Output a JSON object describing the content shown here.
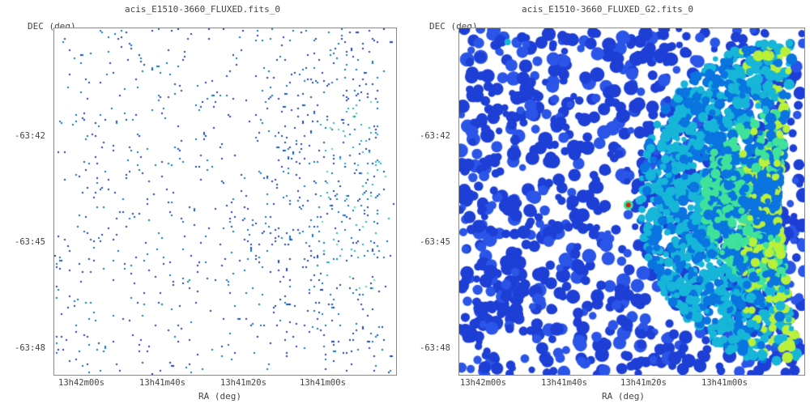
{
  "panels": [
    {
      "title": "acis_E1510-3660_FLUXED.fits_0",
      "xlabel": "RA (deg)",
      "ylabel": "DEC (deg)",
      "yticks": [
        "-63:42",
        "-63:45",
        "-63:48"
      ],
      "xticks": [
        "13h42m00s",
        "13h41m40s",
        "13h41m20s",
        "13h41m00s"
      ],
      "style": "sparse-events"
    },
    {
      "title": "acis_E1510-3660_FLUXED_G2.fits_0",
      "xlabel": "RA (deg)",
      "ylabel": "DEC (deg)",
      "yticks": [
        "-63:42",
        "-63:45",
        "-63:48"
      ],
      "xticks": [
        "13h42m00s",
        "13h41m40s",
        "13h41m20s",
        "13h41m00s"
      ],
      "style": "smoothed"
    }
  ],
  "colormap": [
    "#ffffff",
    "#1d3fd6",
    "#0a74e0",
    "#17b6d8",
    "#3fe29a",
    "#b8f03a",
    "#f2d21c",
    "#e81c14"
  ]
}
